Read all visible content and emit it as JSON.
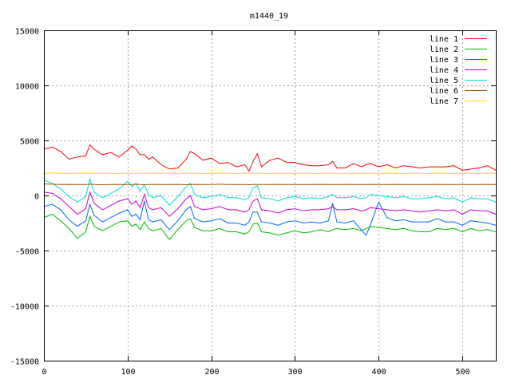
{
  "chart_data": {
    "type": "line",
    "title": "m1440_19",
    "xlabel": "",
    "ylabel": "",
    "xlim": [
      0,
      540
    ],
    "ylim": [
      -15000,
      15000
    ],
    "x_ticks": [
      0,
      100,
      200,
      300,
      400,
      500
    ],
    "y_ticks": [
      -15000,
      -10000,
      -5000,
      0,
      5000,
      10000,
      15000
    ],
    "grid": true,
    "legend_position": "top-right",
    "x": [
      0,
      10,
      20,
      30,
      40,
      50,
      55,
      60,
      70,
      80,
      90,
      100,
      105,
      110,
      115,
      120,
      125,
      130,
      140,
      150,
      160,
      170,
      175,
      180,
      190,
      200,
      210,
      220,
      230,
      240,
      245,
      250,
      255,
      260,
      270,
      280,
      290,
      300,
      310,
      320,
      330,
      340,
      345,
      350,
      360,
      370,
      380,
      385,
      390,
      400,
      410,
      420,
      430,
      440,
      450,
      460,
      470,
      480,
      490,
      500,
      510,
      520,
      530,
      540
    ],
    "series": [
      {
        "name": "line 1",
        "color": "#ff0000",
        "values": [
          4200,
          4400,
          4000,
          3300,
          3500,
          3600,
          4600,
          4200,
          3700,
          3900,
          3500,
          4100,
          4500,
          4200,
          3700,
          3700,
          3300,
          3500,
          2800,
          2400,
          2500,
          3300,
          4000,
          3800,
          3200,
          3400,
          2900,
          3000,
          2600,
          2800,
          2200,
          3100,
          3800,
          2600,
          3200,
          3400,
          3000,
          3000,
          2800,
          2700,
          2700,
          2800,
          3100,
          2500,
          2500,
          2900,
          2600,
          2800,
          2900,
          2600,
          2800,
          2500,
          2700,
          2600,
          2500,
          2600,
          2600,
          2600,
          2700,
          2300,
          2400,
          2500,
          2700,
          2300
        ]
      },
      {
        "name": "line 2",
        "color": "#00bb00",
        "values": [
          -2000,
          -1700,
          -2300,
          -3000,
          -3900,
          -3300,
          -1900,
          -2800,
          -3200,
          -2800,
          -2400,
          -2300,
          -2800,
          -2600,
          -3100,
          -2400,
          -3000,
          -3200,
          -3000,
          -4000,
          -3100,
          -2300,
          -2100,
          -2900,
          -3200,
          -3200,
          -3000,
          -3300,
          -3300,
          -3500,
          -3300,
          -2600,
          -2500,
          -3300,
          -3400,
          -3600,
          -3400,
          -3200,
          -3400,
          -3300,
          -3100,
          -3300,
          -3100,
          -3000,
          -3100,
          -3000,
          -3200,
          -3000,
          -2800,
          -2900,
          -3000,
          -3100,
          -3000,
          -3200,
          -3300,
          -3300,
          -3000,
          -3100,
          -3000,
          -3300,
          -3000,
          -3200,
          -3100,
          -3300
        ]
      },
      {
        "name": "line 3",
        "color": "#0066ff",
        "values": [
          -1000,
          -800,
          -1300,
          -2200,
          -2800,
          -2300,
          -800,
          -1800,
          -2400,
          -2000,
          -1600,
          -1300,
          -1900,
          -1700,
          -2200,
          -500,
          -2200,
          -2400,
          -2200,
          -3100,
          -2300,
          -1300,
          -1000,
          -2100,
          -2400,
          -2300,
          -2100,
          -2500,
          -2500,
          -2700,
          -2400,
          -1500,
          -1500,
          -2400,
          -2500,
          -2700,
          -2400,
          -2300,
          -2500,
          -2400,
          -2500,
          -2300,
          -700,
          -2400,
          -2500,
          -2300,
          -3200,
          -3600,
          -2700,
          -600,
          -2000,
          -2300,
          -2200,
          -2400,
          -2400,
          -2400,
          -2100,
          -2400,
          -2400,
          -2700,
          -2300,
          -2400,
          -2500,
          -2700
        ]
      },
      {
        "name": "line 4",
        "color": "#cc00cc",
        "values": [
          300,
          200,
          -300,
          -1000,
          -1700,
          -1200,
          300,
          -700,
          -1300,
          -900,
          -500,
          -300,
          -800,
          -500,
          -1100,
          100,
          -1100,
          -1300,
          -1100,
          -1900,
          -1200,
          -300,
          0,
          -1000,
          -1300,
          -1200,
          -1000,
          -1300,
          -1300,
          -1500,
          -1300,
          -500,
          -300,
          -1300,
          -1400,
          -1600,
          -1300,
          -1200,
          -1400,
          -1300,
          -1300,
          -1200,
          -1000,
          -1300,
          -1300,
          -1200,
          -1400,
          -1300,
          -1100,
          -1200,
          -1300,
          -1400,
          -1300,
          -1400,
          -1500,
          -1400,
          -1300,
          -1400,
          -1300,
          -1700,
          -1300,
          -1400,
          -1400,
          -1700
        ]
      },
      {
        "name": "line 5",
        "color": "#00dddd",
        "values": [
          1400,
          1100,
          600,
          -100,
          -600,
          -100,
          1500,
          300,
          -200,
          200,
          600,
          1300,
          800,
          1100,
          400,
          1000,
          100,
          -200,
          0,
          -900,
          -100,
          800,
          1100,
          100,
          -200,
          -100,
          100,
          -200,
          -200,
          -400,
          -200,
          700,
          900,
          -200,
          -300,
          -500,
          -200,
          -100,
          -300,
          -200,
          -300,
          -100,
          100,
          -200,
          -200,
          -100,
          -300,
          -200,
          100,
          0,
          -100,
          -200,
          -100,
          -300,
          -300,
          -200,
          -100,
          -300,
          -200,
          -600,
          -200,
          -300,
          -300,
          -600
        ]
      },
      {
        "name": "line 6",
        "color": "#a05000",
        "values": [
          1050,
          1020,
          1000,
          1010,
          990,
          1000,
          1020,
          1000,
          980,
          1000,
          1010,
          990,
          1000,
          1020,
          990,
          980,
          1000,
          1010,
          990,
          1000,
          1010,
          980,
          1000,
          1010,
          990,
          1000,
          1020,
          1000,
          990,
          1000,
          980,
          1010,
          1000,
          990,
          1000,
          1010,
          990,
          1000,
          1000,
          990,
          1010,
          1000,
          990,
          1000,
          1010,
          990,
          1000,
          1000,
          1010,
          990,
          1000,
          1010,
          990,
          1000,
          1000,
          990,
          1010,
          1000,
          990,
          1000,
          1000,
          990,
          1010,
          1000
        ]
      },
      {
        "name": "line 7",
        "color": "#ffd700",
        "values": [
          2000,
          2050,
          2020,
          2000,
          2030,
          2010,
          2040,
          2000,
          2020,
          2010,
          2000,
          2030,
          2010,
          2000,
          2020,
          2040,
          2010,
          2000,
          2020,
          2010,
          2000,
          2030,
          2010,
          2020,
          2000,
          2010,
          2030,
          2010,
          2000,
          2020,
          2010,
          2000,
          2030,
          2010,
          2000,
          2020,
          2010,
          2000,
          2020,
          2010,
          2000,
          2030,
          2010,
          2000,
          2020,
          2010,
          2000,
          2020,
          2010,
          2000,
          2030,
          2010,
          2000,
          2020,
          2010,
          2000,
          2030,
          2010,
          2000,
          2020,
          2010,
          2000,
          2020,
          2010
        ]
      }
    ]
  }
}
